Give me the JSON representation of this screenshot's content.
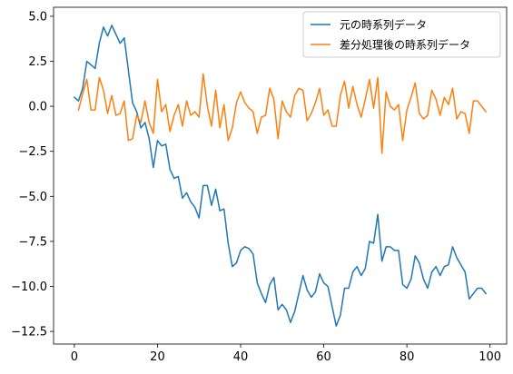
{
  "chart_data": {
    "type": "line",
    "title": "",
    "xlabel": "",
    "ylabel": "",
    "xlim": [
      -5,
      104
    ],
    "ylim": [
      -13.2,
      5.5
    ],
    "xticks": [
      0,
      20,
      40,
      60,
      80,
      100
    ],
    "yticks": [
      5.0,
      2.5,
      0.0,
      -2.5,
      -5.0,
      -7.5,
      -10.0,
      -12.5
    ],
    "ytick_labels": [
      "5.0",
      "2.5",
      "0.0",
      "−2.5",
      "−5.0",
      "−7.5",
      "−10.0",
      "−12.5"
    ],
    "grid": false,
    "legend_position": "top-right",
    "series": [
      {
        "name": "元の時系列データ",
        "color": "#1f77b4",
        "x_start": 0,
        "values": [
          0.5,
          0.3,
          1.0,
          2.5,
          2.3,
          2.1,
          3.5,
          4.4,
          3.9,
          4.5,
          4.0,
          3.5,
          3.8,
          2.0,
          0.2,
          -0.3,
          -1.2,
          -0.9,
          -1.8,
          -3.4,
          -1.9,
          -2.2,
          -2.1,
          -3.5,
          -4.0,
          -3.9,
          -5.1,
          -4.8,
          -5.3,
          -5.6,
          -6.2,
          -4.4,
          -4.4,
          -5.5,
          -4.6,
          -5.8,
          -5.7,
          -7.6,
          -8.9,
          -8.7,
          -8.0,
          -7.8,
          -7.9,
          -8.2,
          -9.8,
          -10.4,
          -10.9,
          -9.9,
          -9.5,
          -11.3,
          -11.0,
          -11.3,
          -12.0,
          -11.4,
          -10.4,
          -9.4,
          -10.2,
          -10.6,
          -10.3,
          -9.3,
          -9.8,
          -10.0,
          -11.1,
          -12.2,
          -11.6,
          -10.1,
          -10.1,
          -9.2,
          -8.9,
          -9.4,
          -9.0,
          -7.5,
          -7.6,
          -6.0,
          -8.6,
          -7.8,
          -7.8,
          -8.0,
          -8.0,
          -9.9,
          -10.1,
          -9.6,
          -8.3,
          -8.7,
          -9.6,
          -10.1,
          -9.2,
          -8.9,
          -9.4,
          -8.9,
          -8.8,
          -7.8,
          -8.4,
          -8.8,
          -9.2,
          -10.7,
          -10.4,
          -10.1,
          -10.1,
          -10.4
        ]
      },
      {
        "name": "差分処理後の時系列データ",
        "color": "#ff7f0e",
        "x_start": 1,
        "values": [
          -0.2,
          0.7,
          1.5,
          -0.2,
          -0.2,
          1.6,
          0.9,
          -0.4,
          0.6,
          -0.5,
          -0.4,
          0.3,
          -1.9,
          -1.8,
          -0.5,
          -0.9,
          0.3,
          -0.9,
          -1.5,
          1.5,
          -0.3,
          0.1,
          -1.4,
          -0.5,
          0.1,
          -1.1,
          0.3,
          -0.5,
          -0.3,
          -0.6,
          1.8,
          0.0,
          -1.1,
          0.9,
          -1.2,
          0.1,
          -1.9,
          -1.2,
          0.2,
          0.8,
          0.2,
          -0.1,
          -0.3,
          -1.5,
          -0.6,
          -0.5,
          1.0,
          0.4,
          -1.8,
          0.3,
          -0.3,
          -0.6,
          0.6,
          1.0,
          0.9,
          -0.8,
          -0.4,
          0.2,
          1.0,
          -0.5,
          -0.2,
          -1.1,
          -1.1,
          0.6,
          1.4,
          -0.1,
          1.1,
          0.1,
          -0.6,
          0.4,
          1.5,
          -0.1,
          1.6,
          -2.6,
          0.8,
          0.0,
          -0.2,
          0.1,
          -1.9,
          -0.2,
          0.5,
          1.3,
          -0.4,
          -0.7,
          -0.5,
          0.9,
          0.4,
          -0.5,
          0.5,
          0.1,
          1.0,
          -0.7,
          -0.3,
          -0.4,
          -1.5,
          0.3,
          0.3,
          0.0,
          -0.3
        ]
      }
    ]
  }
}
